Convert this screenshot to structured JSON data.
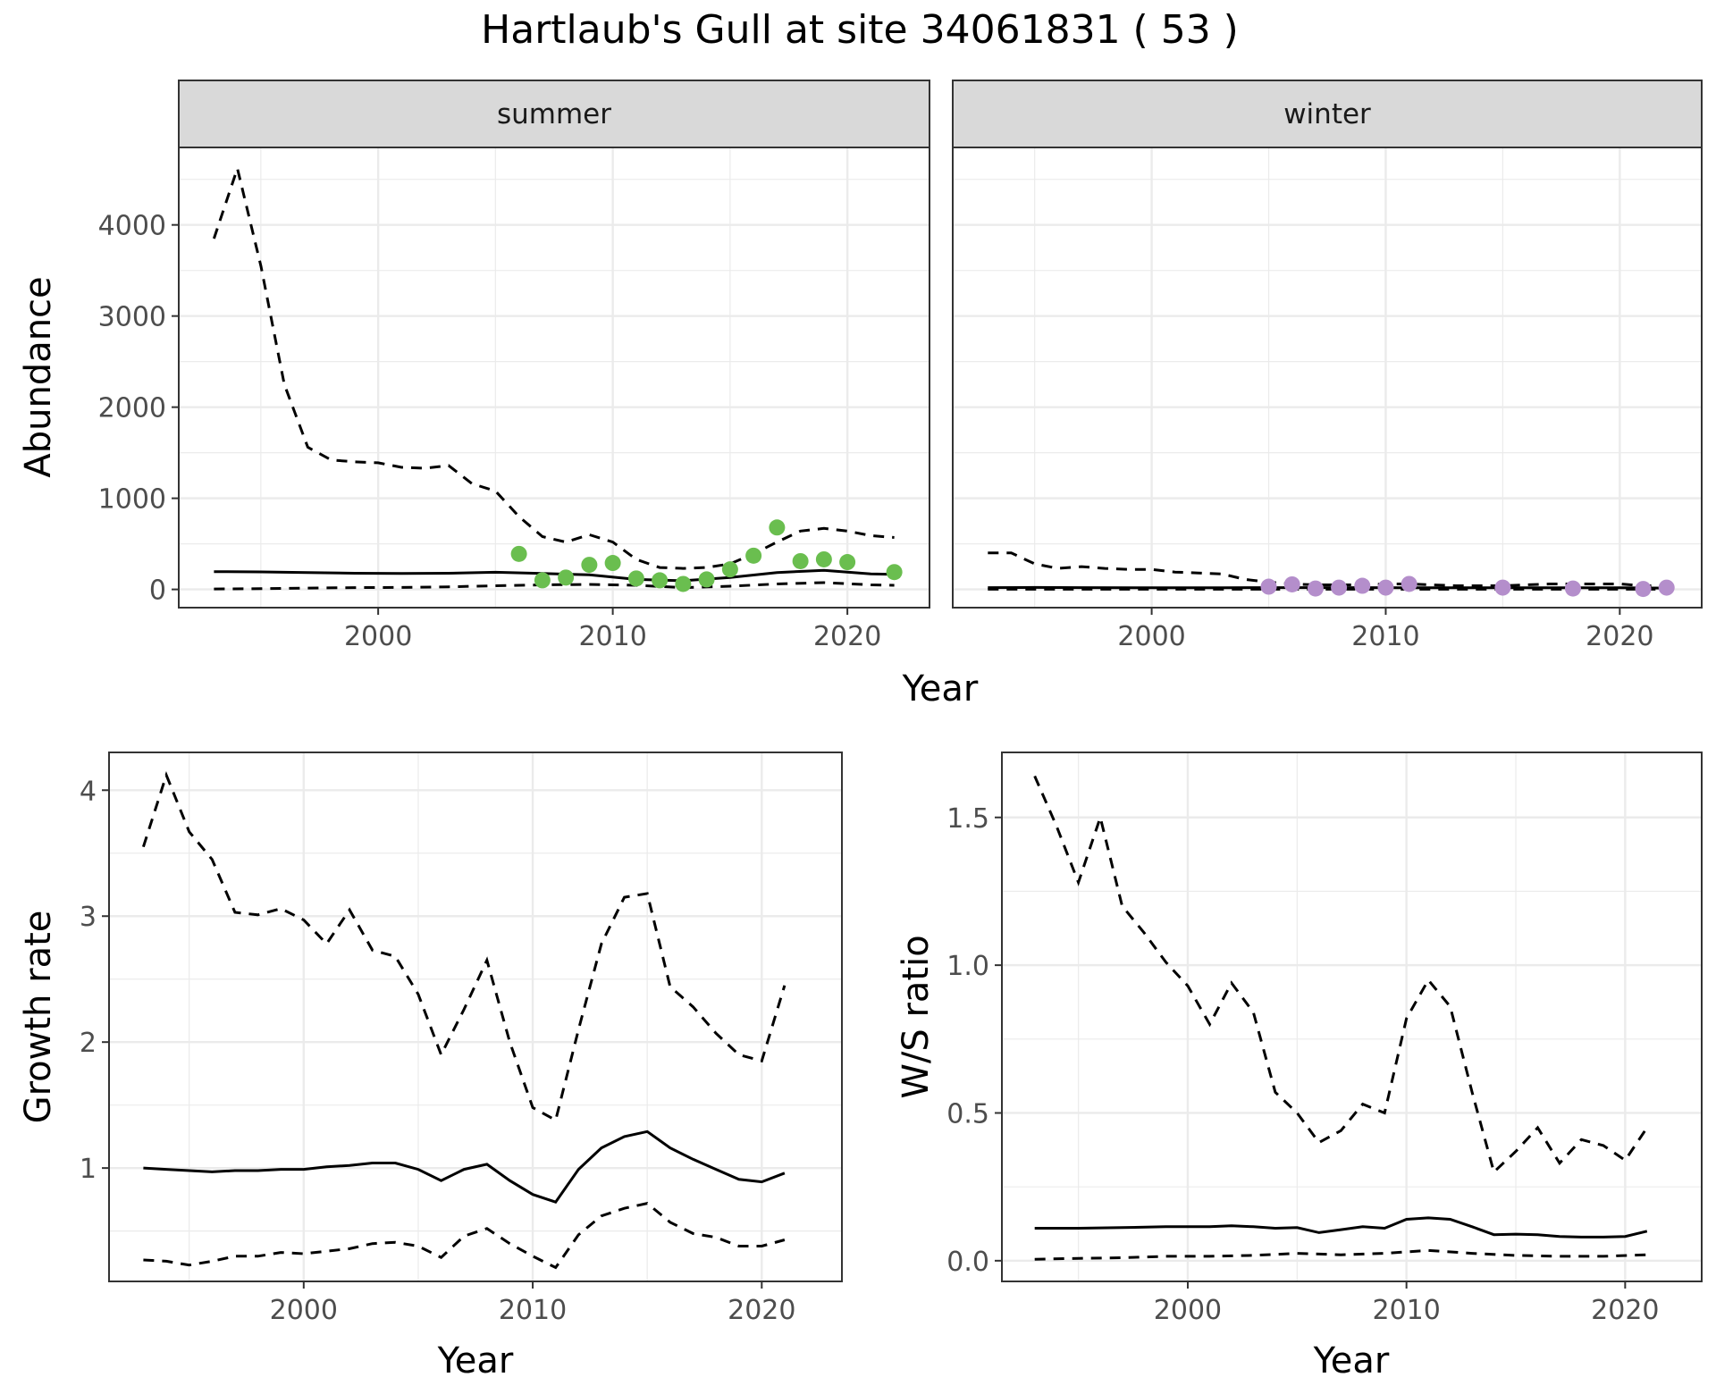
{
  "title": "Hartlaub's Gull at site 34061831 ( 53 )",
  "colors": {
    "summer_points": "#6ABE4F",
    "winter_points": "#B48ECB",
    "line": "#000000",
    "strip_bg": "#D9D9D9",
    "grid": "#EBEBEB"
  },
  "chart_data": [
    {
      "id": "abundance",
      "type": "line",
      "ylabel": "Abundance",
      "xlabel": "Year",
      "xlim": [
        1991.5,
        2023.5
      ],
      "ylim": [
        -200,
        4850
      ],
      "xticks": [
        2000,
        2010,
        2020
      ],
      "yticks": [
        0,
        1000,
        2000,
        3000,
        4000
      ],
      "grid": true,
      "facets": [
        {
          "strip": "summer",
          "mean": {
            "x": [
              1993,
              1995,
              1997,
              1999,
              2001,
              2003,
              2005,
              2007,
              2009,
              2011,
              2013,
              2015,
              2017,
              2019,
              2021,
              2022
            ],
            "y": [
              195,
              192,
              185,
              178,
              175,
              178,
              188,
              175,
              160,
              110,
              95,
              130,
              185,
              210,
              170,
              165
            ]
          },
          "upper": {
            "x": [
              1993,
              1994,
              1995,
              1996,
              1997,
              1998,
              1999,
              2000,
              2001,
              2002,
              2003,
              2004,
              2005,
              2006,
              2007,
              2008,
              2009,
              2010,
              2011,
              2012,
              2013,
              2014,
              2015,
              2016,
              2017,
              2018,
              2019,
              2020,
              2021,
              2022
            ],
            "y": [
              3850,
              4620,
              3550,
              2250,
              1560,
              1420,
              1400,
              1390,
              1340,
              1330,
              1360,
              1160,
              1080,
              800,
              580,
              520,
              600,
              520,
              330,
              240,
              230,
              240,
              280,
              390,
              520,
              640,
              670,
              640,
              590,
              570
            ]
          },
          "lower": {
            "x": [
              1993,
              1995,
              1997,
              1999,
              2001,
              2003,
              2005,
              2007,
              2009,
              2011,
              2013,
              2015,
              2017,
              2019,
              2021,
              2022
            ],
            "y": [
              5,
              8,
              15,
              20,
              22,
              28,
              40,
              50,
              55,
              45,
              20,
              35,
              60,
              75,
              50,
              45
            ]
          },
          "points": {
            "x": [
              2006,
              2007,
              2008,
              2009,
              2010,
              2011,
              2012,
              2013,
              2014,
              2015,
              2016,
              2017,
              2018,
              2019,
              2020,
              2022
            ],
            "y": [
              390,
              100,
              130,
              270,
              290,
              120,
              100,
              60,
              110,
              220,
              370,
              680,
              310,
              330,
              300,
              190
            ]
          }
        },
        {
          "strip": "winter",
          "mean": {
            "x": [
              1993,
              1995,
              1997,
              2000,
              2003,
              2005,
              2008,
              2011,
              2014,
              2017,
              2020,
              2022
            ],
            "y": [
              20,
              22,
              20,
              18,
              18,
              20,
              20,
              18,
              18,
              18,
              18,
              15
            ]
          },
          "upper": {
            "x": [
              1993,
              1994,
              1995,
              1996,
              1997,
              1998,
              1999,
              2000,
              2001,
              2002,
              2003,
              2004,
              2005,
              2006,
              2007,
              2008,
              2009,
              2010,
              2011,
              2012,
              2013,
              2014,
              2015,
              2016,
              2017,
              2018,
              2019,
              2020,
              2021,
              2022
            ],
            "y": [
              400,
              400,
              280,
              230,
              250,
              230,
              220,
              220,
              190,
              180,
              170,
              110,
              80,
              60,
              50,
              50,
              50,
              60,
              60,
              50,
              40,
              40,
              40,
              50,
              60,
              60,
              60,
              60,
              40,
              40
            ]
          },
          "lower": {
            "x": [
              1993,
              1996,
              2000,
              2004,
              2008,
              2012,
              2016,
              2020,
              2022
            ],
            "y": [
              2,
              2,
              2,
              2,
              2,
              2,
              2,
              2,
              2
            ]
          },
          "points": {
            "x": [
              2005,
              2006,
              2007,
              2008,
              2009,
              2010,
              2011,
              2015,
              2018,
              2021,
              2022
            ],
            "y": [
              30,
              55,
              10,
              20,
              40,
              20,
              60,
              20,
              10,
              5,
              20
            ]
          }
        }
      ]
    },
    {
      "id": "growth",
      "type": "line",
      "ylabel": "Growth rate",
      "xlabel": "Year",
      "xlim": [
        1991.5,
        2023.5
      ],
      "ylim": [
        0.1,
        4.3
      ],
      "xticks": [
        2000,
        2010,
        2020
      ],
      "yticks": [
        1,
        2,
        3,
        4
      ],
      "grid": true,
      "mean": {
        "x": [
          1993,
          1994,
          1995,
          1996,
          1997,
          1998,
          1999,
          2000,
          2001,
          2002,
          2003,
          2004,
          2005,
          2006,
          2007,
          2008,
          2009,
          2010,
          2011,
          2012,
          2013,
          2014,
          2015,
          2016,
          2017,
          2018,
          2019,
          2020,
          2021
        ],
        "y": [
          1.0,
          0.99,
          0.98,
          0.97,
          0.98,
          0.98,
          0.99,
          0.99,
          1.01,
          1.02,
          1.04,
          1.04,
          0.99,
          0.9,
          0.99,
          1.03,
          0.9,
          0.79,
          0.73,
          0.99,
          1.16,
          1.25,
          1.29,
          1.16,
          1.07,
          0.99,
          0.91,
          0.89,
          0.96
        ]
      },
      "upper": {
        "x": [
          1993,
          1994,
          1995,
          1996,
          1997,
          1998,
          1999,
          2000,
          2001,
          2002,
          2003,
          2004,
          2005,
          2006,
          2007,
          2008,
          2009,
          2010,
          2011,
          2012,
          2013,
          2014,
          2015,
          2016,
          2017,
          2018,
          2019,
          2020,
          2021
        ],
        "y": [
          3.55,
          4.12,
          3.67,
          3.45,
          3.03,
          3.01,
          3.06,
          2.97,
          2.78,
          3.05,
          2.73,
          2.68,
          2.38,
          1.9,
          2.26,
          2.65,
          2.0,
          1.48,
          1.38,
          2.1,
          2.78,
          3.15,
          3.18,
          2.44,
          2.28,
          2.07,
          1.9,
          1.85,
          2.45
        ]
      },
      "lower": {
        "x": [
          1993,
          1994,
          1995,
          1996,
          1997,
          1998,
          1999,
          2000,
          2001,
          2002,
          2003,
          2004,
          2005,
          2006,
          2007,
          2008,
          2009,
          2010,
          2011,
          2012,
          2013,
          2014,
          2015,
          2016,
          2017,
          2018,
          2019,
          2020,
          2021
        ],
        "y": [
          0.27,
          0.26,
          0.23,
          0.26,
          0.3,
          0.3,
          0.33,
          0.32,
          0.34,
          0.36,
          0.4,
          0.41,
          0.38,
          0.29,
          0.46,
          0.52,
          0.4,
          0.3,
          0.21,
          0.47,
          0.62,
          0.68,
          0.72,
          0.57,
          0.48,
          0.45,
          0.38,
          0.38,
          0.43
        ]
      }
    },
    {
      "id": "ws_ratio",
      "type": "line",
      "ylabel": "W/S ratio",
      "xlabel": "Year",
      "xlim": [
        1991.5,
        2023.5
      ],
      "ylim": [
        -0.07,
        1.72
      ],
      "xticks": [
        2000,
        2010,
        2020
      ],
      "yticks": [
        0.0,
        0.5,
        1.0,
        1.5
      ],
      "ytick_labels": [
        "0.0",
        "0.5",
        "1.0",
        "1.5"
      ],
      "grid": true,
      "mean": {
        "x": [
          1993,
          1995,
          1997,
          1999,
          2001,
          2002,
          2003,
          2004,
          2005,
          2006,
          2007,
          2008,
          2009,
          2010,
          2011,
          2012,
          2013,
          2014,
          2015,
          2016,
          2017,
          2018,
          2019,
          2020,
          2021
        ],
        "y": [
          0.11,
          0.11,
          0.112,
          0.115,
          0.115,
          0.118,
          0.115,
          0.11,
          0.112,
          0.095,
          0.105,
          0.115,
          0.11,
          0.14,
          0.145,
          0.14,
          0.115,
          0.088,
          0.09,
          0.088,
          0.082,
          0.08,
          0.08,
          0.082,
          0.1
        ]
      },
      "upper": {
        "x": [
          1993,
          1994,
          1995,
          1996,
          1997,
          1998,
          1999,
          2000,
          2001,
          2002,
          2003,
          2004,
          2005,
          2006,
          2007,
          2008,
          2009,
          2010,
          2011,
          2012,
          2013,
          2014,
          2015,
          2016,
          2017,
          2018,
          2019,
          2020,
          2021
        ],
        "y": [
          1.64,
          1.47,
          1.28,
          1.5,
          1.2,
          1.11,
          1.01,
          0.93,
          0.8,
          0.94,
          0.84,
          0.57,
          0.5,
          0.4,
          0.44,
          0.53,
          0.5,
          0.82,
          0.95,
          0.86,
          0.57,
          0.3,
          0.37,
          0.45,
          0.33,
          0.41,
          0.39,
          0.34,
          0.45
        ]
      },
      "lower": {
        "x": [
          1993,
          1995,
          1997,
          1999,
          2001,
          2003,
          2005,
          2007,
          2009,
          2011,
          2013,
          2015,
          2017,
          2019,
          2021
        ],
        "y": [
          0.005,
          0.008,
          0.01,
          0.015,
          0.015,
          0.018,
          0.025,
          0.02,
          0.025,
          0.035,
          0.025,
          0.018,
          0.015,
          0.015,
          0.02
        ]
      }
    }
  ]
}
